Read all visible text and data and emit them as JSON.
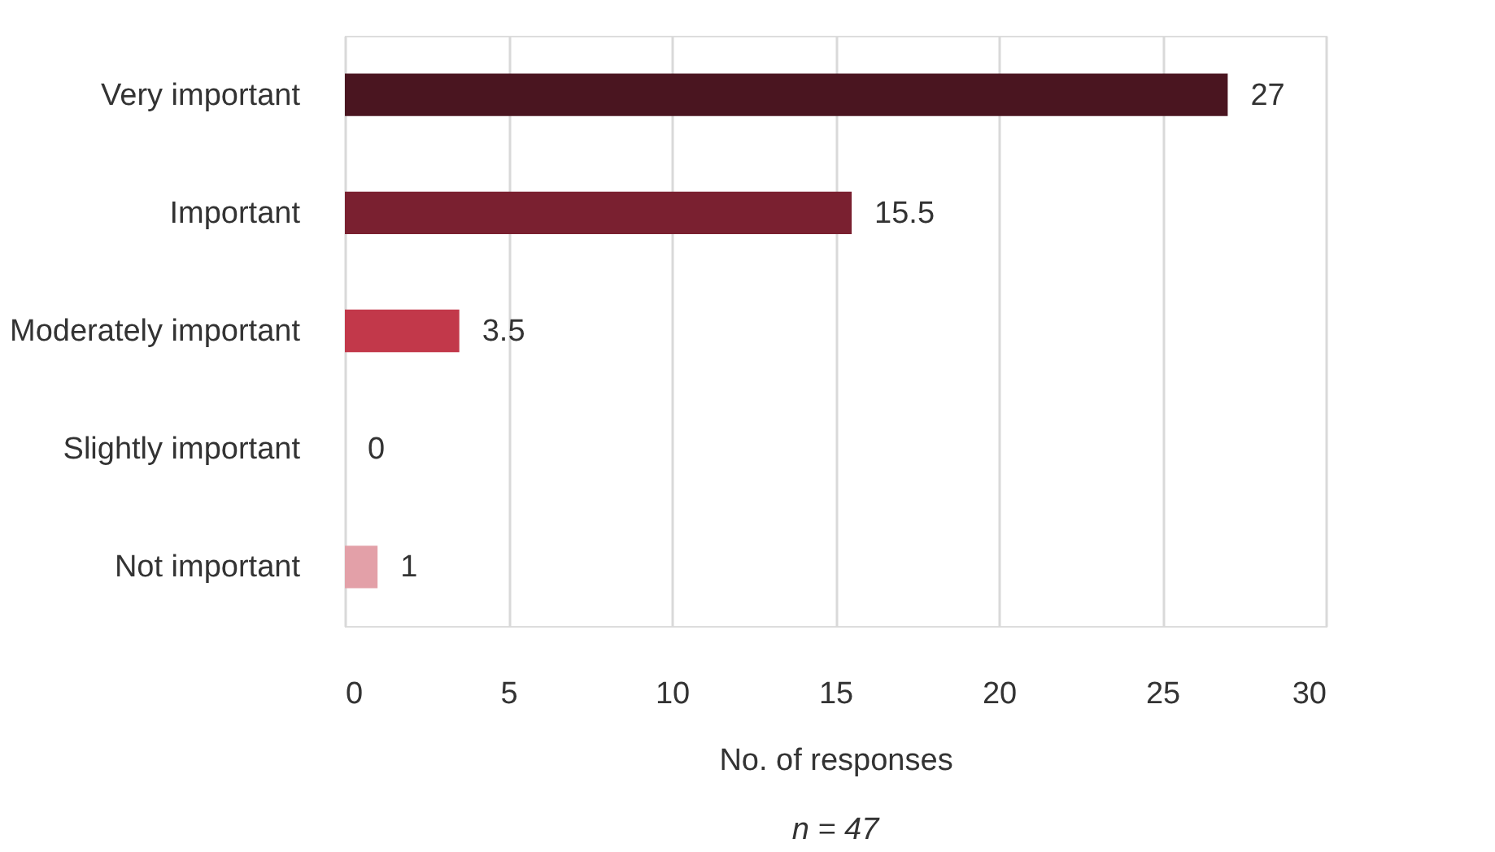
{
  "chart_data": {
    "type": "bar",
    "orientation": "horizontal",
    "categories": [
      "Very important",
      "Important",
      "Moderately important",
      "Slightly important",
      "Not important"
    ],
    "values": [
      27,
      15.5,
      3.5,
      0,
      1
    ],
    "colors": [
      "#4a1520",
      "#7a2030",
      "#c2384a",
      "#d9606f",
      "#e3a0a8"
    ],
    "xlim": [
      0,
      30
    ],
    "xticks": [
      0,
      5,
      10,
      15,
      20,
      25,
      30
    ],
    "xlabel": "No. of responses",
    "annotations": [
      "n = 47"
    ],
    "data_labels": true,
    "grid": "x"
  }
}
